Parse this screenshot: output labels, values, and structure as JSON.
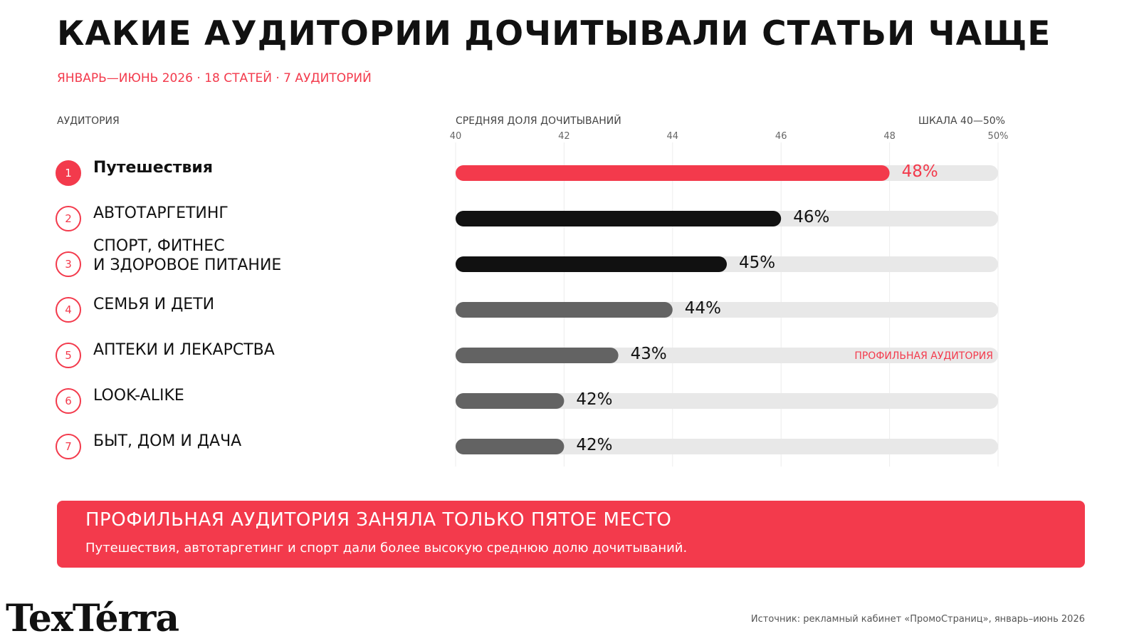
{
  "header": {
    "title": "КАКИЕ АУДИТОРИИ ДОЧИТЫВАЛИ СТАТЬИ ЧАЩЕ",
    "subtitle": "ЯНВАРЬ—ИЮНЬ 2026 · 18 СТАТЕЙ · 7 АУДИТОРИЙ"
  },
  "columns": {
    "audience": "АУДИТОРИЯ",
    "metric": "СРЕДНЯЯ ДОЛЯ ДОЧИТЫВАНИЙ",
    "scale": "ШКАЛА 40—50%"
  },
  "chart_data": {
    "type": "bar",
    "orientation": "horizontal",
    "xlim": [
      40,
      50
    ],
    "ticks": [
      "40",
      "42",
      "44",
      "46",
      "48",
      "50%"
    ],
    "tick_values": [
      40,
      42,
      44,
      46,
      48,
      50
    ],
    "grid": true,
    "categories": [
      "Путешествия",
      "АВТОТАРГЕТИНГ",
      "СПОРТ, ФИТНЕС\nИ ЗДОРОВОЕ ПИТАНИЕ",
      "СЕМЬЯ И ДЕТИ",
      "АПТЕКИ И ЛЕКАРСТВА",
      "LOOK-ALIKE",
      "БЫТ, ДОМ И ДАЧА"
    ],
    "ranks": [
      "1",
      "2",
      "3",
      "4",
      "5",
      "6",
      "7"
    ],
    "values": [
      48,
      46,
      45,
      44,
      43,
      42,
      42
    ],
    "value_labels": [
      "48%",
      "46%",
      "45%",
      "44%",
      "43%",
      "42%",
      "42%"
    ],
    "bar_colors": [
      "#f33a4c",
      "#111111",
      "#111111",
      "#636363",
      "#636363",
      "#636363",
      "#636363"
    ],
    "annotation": {
      "category_index": 4,
      "text": "ПРОФИЛЬНАЯ АУДИТОРИЯ"
    }
  },
  "callout": {
    "title": "ПРОФИЛЬНАЯ АУДИТОРИЯ ЗАНЯЛА ТОЛЬКО ПЯТОЕ МЕСТО",
    "text": "Путешествия, автотаргетинг и спорт дали более высокую среднюю долю дочитываний."
  },
  "footer": {
    "logo": "TexTérra",
    "source": "Источник: рекламный кабинет «ПромоСтраниц», январь–июнь 2026"
  },
  "colors": {
    "accent": "#f33a4c",
    "track": "#e8e8e8",
    "grid": "#ececec"
  }
}
